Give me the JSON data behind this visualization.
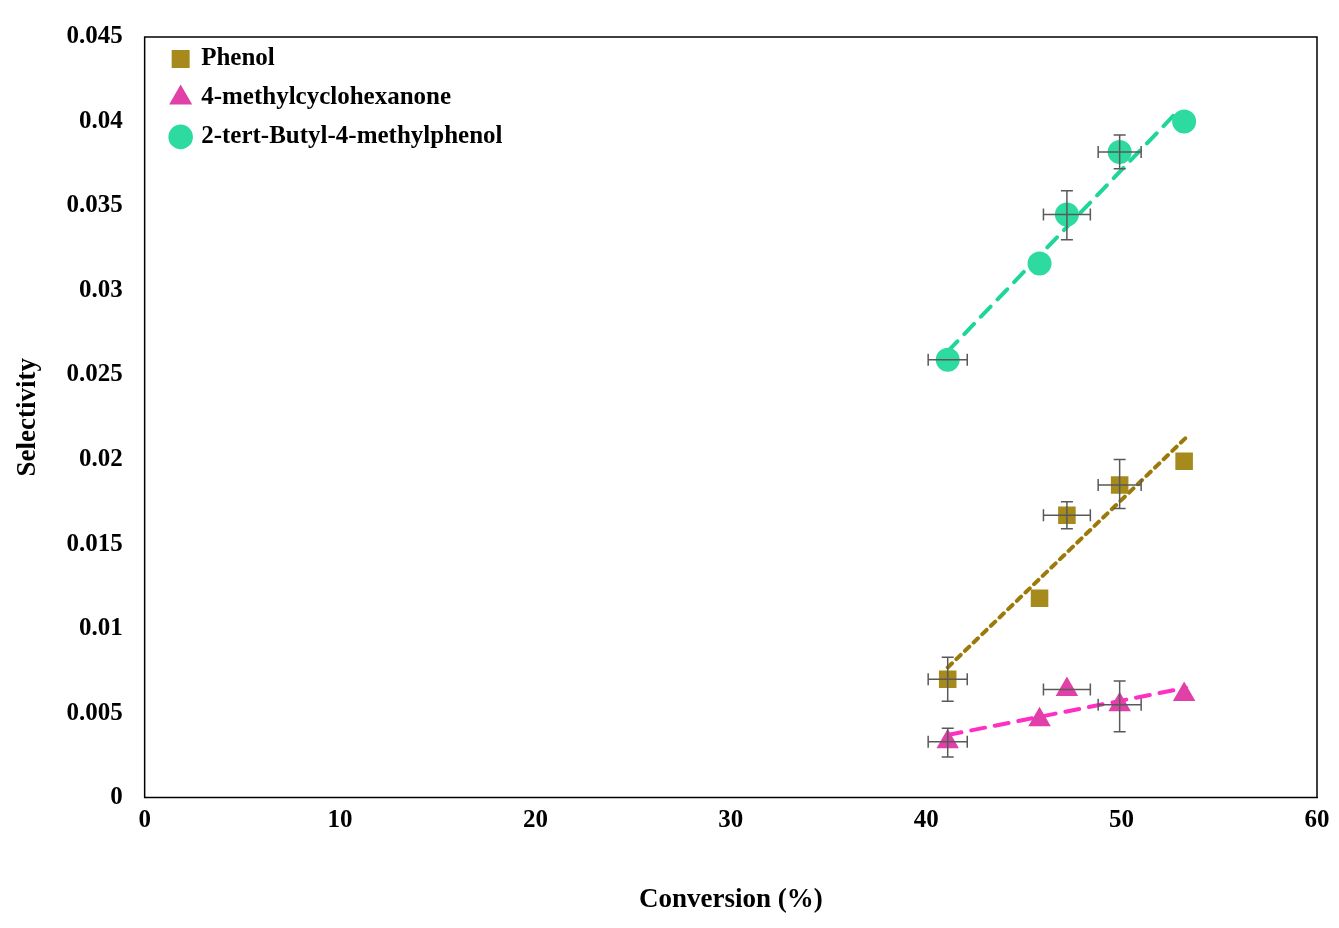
{
  "chart_data": {
    "type": "scatter",
    "xlabel": "Conversion (%)",
    "ylabel": "Selectivity",
    "xlim": [
      0,
      60
    ],
    "xticks": [
      0,
      10,
      20,
      30,
      40,
      50,
      60
    ],
    "ylim": [
      0,
      0.045
    ],
    "yticks": [
      0,
      0.005,
      0.01,
      0.015,
      0.02,
      0.025,
      0.03,
      0.035,
      0.04,
      0.045
    ],
    "grid": false,
    "legend": "top left",
    "series": [
      {
        "name": "Phenol",
        "marker": "square",
        "color": "#a68a1c",
        "x": [
          41.1,
          45.8,
          47.2,
          49.9,
          53.2
        ],
        "values": [
          0.007,
          0.0118,
          0.0167,
          0.0185,
          0.0199
        ],
        "errors": [
          [
            0.0057,
            0.0083
          ],
          null,
          [
            0.0159,
            0.0175
          ],
          [
            0.0171,
            0.02
          ],
          null
        ],
        "xerrors": [
          1.0,
          null,
          1.2,
          1.1,
          null
        ]
      },
      {
        "name": "4-methylcyclohexanone",
        "marker": "triangle",
        "color": "#e040a8",
        "x": [
          41.1,
          45.8,
          47.2,
          49.9,
          53.2
        ],
        "values": [
          0.0033,
          0.0046,
          0.0064,
          0.0055,
          0.0061
        ],
        "errors": [
          [
            0.0024,
            0.0041
          ],
          null,
          null,
          [
            0.0039,
            0.0069
          ],
          null
        ],
        "xerrors": [
          1.0,
          null,
          1.2,
          1.1,
          null
        ]
      },
      {
        "name": "2-tert-Butyl-4-methylphenol",
        "marker": "circle",
        "color": "#2ddba0",
        "x": [
          41.1,
          45.8,
          47.2,
          49.9,
          53.2
        ],
        "values": [
          0.0259,
          0.0316,
          0.0345,
          0.0382,
          0.04
        ],
        "errors": [
          null,
          null,
          [
            0.033,
            0.0359
          ],
          [
            0.0372,
            0.0392
          ],
          null
        ],
        "xerrors": [
          1.0,
          null,
          1.2,
          1.1,
          null
        ]
      },
      {
        "type": "line",
        "color": "#9b7a0a",
        "line_style": "dotted",
        "x": [
          41.1,
          53.3
        ],
        "values": [
          0.0077,
          0.0213
        ]
      },
      {
        "type": "line",
        "color": "#ff2ec4",
        "line_style": "dashed",
        "x": [
          41.1,
          53.3
        ],
        "values": [
          0.0037,
          0.0065
        ]
      },
      {
        "type": "line",
        "color": "#1fd69a",
        "line_style": "dashed",
        "x": [
          41.1,
          52.7
        ],
        "values": [
          0.0264,
          0.0404
        ]
      }
    ]
  }
}
